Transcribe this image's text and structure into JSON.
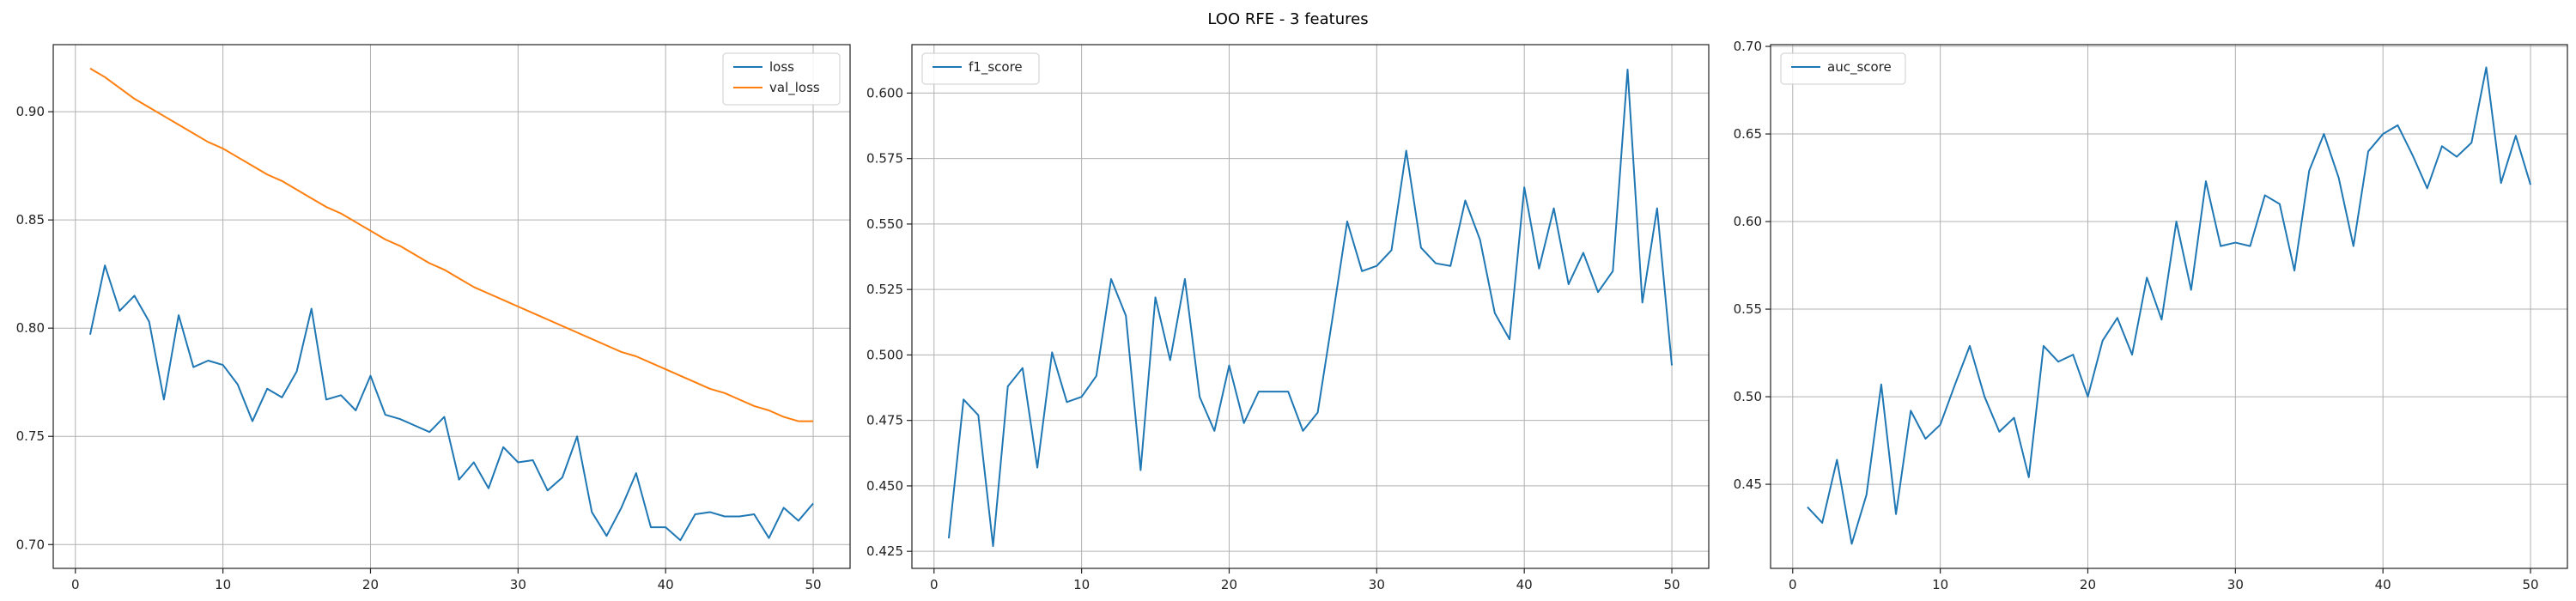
{
  "figure": {
    "title": "LOO RFE - 3 features",
    "background": "#ffffff"
  },
  "chart_data": [
    {
      "type": "line",
      "title": "",
      "xlabel": "",
      "ylabel": "",
      "grid": true,
      "legend_position": "upper-right",
      "xlim": [
        -1.5,
        52.5
      ],
      "ylim": [
        0.689,
        0.931
      ],
      "xticks": [
        0,
        10,
        20,
        30,
        40,
        50
      ],
      "yticks": [
        0.7,
        0.75,
        0.8,
        0.85,
        0.9
      ],
      "ytick_labels": [
        "0.70",
        "0.75",
        "0.80",
        "0.85",
        "0.90"
      ],
      "x": [
        1,
        2,
        3,
        4,
        5,
        6,
        7,
        8,
        9,
        10,
        11,
        12,
        13,
        14,
        15,
        16,
        17,
        18,
        19,
        20,
        21,
        22,
        23,
        24,
        25,
        26,
        27,
        28,
        29,
        30,
        31,
        32,
        33,
        34,
        35,
        36,
        37,
        38,
        39,
        40,
        41,
        42,
        43,
        44,
        45,
        46,
        47,
        48,
        49,
        50
      ],
      "series": [
        {
          "name": "loss",
          "color": "#1f77b4",
          "values": [
            0.797,
            0.829,
            0.808,
            0.815,
            0.803,
            0.767,
            0.806,
            0.782,
            0.785,
            0.783,
            0.774,
            0.757,
            0.772,
            0.768,
            0.78,
            0.809,
            0.767,
            0.769,
            0.762,
            0.778,
            0.76,
            0.758,
            0.755,
            0.752,
            0.759,
            0.73,
            0.738,
            0.726,
            0.745,
            0.738,
            0.739,
            0.725,
            0.731,
            0.75,
            0.715,
            0.704,
            0.717,
            0.733,
            0.708,
            0.708,
            0.702,
            0.714,
            0.715,
            0.713,
            0.713,
            0.714,
            0.703,
            0.717,
            0.711,
            0.719
          ]
        },
        {
          "name": "val_loss",
          "color": "#ff7f0e",
          "values": [
            0.92,
            0.916,
            0.911,
            0.906,
            0.902,
            0.898,
            0.894,
            0.89,
            0.886,
            0.883,
            0.879,
            0.875,
            0.871,
            0.868,
            0.864,
            0.86,
            0.856,
            0.853,
            0.849,
            0.845,
            0.841,
            0.838,
            0.834,
            0.83,
            0.827,
            0.823,
            0.819,
            0.816,
            0.813,
            0.81,
            0.807,
            0.804,
            0.801,
            0.798,
            0.795,
            0.792,
            0.789,
            0.787,
            0.784,
            0.781,
            0.778,
            0.775,
            0.772,
            0.77,
            0.767,
            0.764,
            0.762,
            0.759,
            0.757,
            0.757
          ]
        }
      ]
    },
    {
      "type": "line",
      "title": "",
      "xlabel": "",
      "ylabel": "",
      "grid": true,
      "legend_position": "upper-left",
      "xlim": [
        -1.5,
        52.5
      ],
      "ylim": [
        0.4185,
        0.6185
      ],
      "xticks": [
        0,
        10,
        20,
        30,
        40,
        50
      ],
      "yticks": [
        0.425,
        0.45,
        0.475,
        0.5,
        0.525,
        0.55,
        0.575,
        0.6
      ],
      "ytick_labels": [
        "0.425",
        "0.450",
        "0.475",
        "0.500",
        "0.525",
        "0.550",
        "0.575",
        "0.600"
      ],
      "x": [
        1,
        2,
        3,
        4,
        5,
        6,
        7,
        8,
        9,
        10,
        11,
        12,
        13,
        14,
        15,
        16,
        17,
        18,
        19,
        20,
        21,
        22,
        23,
        24,
        25,
        26,
        27,
        28,
        29,
        30,
        31,
        32,
        33,
        34,
        35,
        36,
        37,
        38,
        39,
        40,
        41,
        42,
        43,
        44,
        45,
        46,
        47,
        48,
        49,
        50
      ],
      "series": [
        {
          "name": "f1_score",
          "color": "#1f77b4",
          "values": [
            0.43,
            0.483,
            0.477,
            0.427,
            0.488,
            0.495,
            0.457,
            0.501,
            0.482,
            0.484,
            0.492,
            0.529,
            0.515,
            0.456,
            0.522,
            0.498,
            0.529,
            0.484,
            0.471,
            0.496,
            0.474,
            0.486,
            0.486,
            0.486,
            0.471,
            0.478,
            0.514,
            0.551,
            0.532,
            0.534,
            0.54,
            0.578,
            0.541,
            0.535,
            0.534,
            0.559,
            0.544,
            0.516,
            0.506,
            0.564,
            0.533,
            0.556,
            0.527,
            0.539,
            0.524,
            0.532,
            0.609,
            0.52,
            0.556,
            0.496
          ]
        }
      ]
    },
    {
      "type": "line",
      "title": "",
      "xlabel": "",
      "ylabel": "",
      "grid": true,
      "legend_position": "upper-left",
      "xlim": [
        -1.5,
        52.5
      ],
      "ylim": [
        0.402,
        0.701
      ],
      "xticks": [
        0,
        10,
        20,
        30,
        40,
        50
      ],
      "yticks": [
        0.45,
        0.5,
        0.55,
        0.6,
        0.65,
        0.7
      ],
      "ytick_labels": [
        "0.45",
        "0.50",
        "0.55",
        "0.60",
        "0.65",
        "0.70"
      ],
      "x": [
        1,
        2,
        3,
        4,
        5,
        6,
        7,
        8,
        9,
        10,
        11,
        12,
        13,
        14,
        15,
        16,
        17,
        18,
        19,
        20,
        21,
        22,
        23,
        24,
        25,
        26,
        27,
        28,
        29,
        30,
        31,
        32,
        33,
        34,
        35,
        36,
        37,
        38,
        39,
        40,
        41,
        42,
        43,
        44,
        45,
        46,
        47,
        48,
        49,
        50
      ],
      "series": [
        {
          "name": "auc_score",
          "color": "#1f77b4",
          "values": [
            0.437,
            0.428,
            0.464,
            0.416,
            0.444,
            0.507,
            0.433,
            0.492,
            0.476,
            0.484,
            0.507,
            0.529,
            0.5,
            0.48,
            0.488,
            0.454,
            0.529,
            0.52,
            0.524,
            0.5,
            0.532,
            0.545,
            0.524,
            0.568,
            0.544,
            0.6,
            0.561,
            0.623,
            0.586,
            0.588,
            0.586,
            0.615,
            0.61,
            0.572,
            0.629,
            0.65,
            0.625,
            0.586,
            0.64,
            0.65,
            0.655,
            0.638,
            0.619,
            0.643,
            0.637,
            0.645,
            0.688,
            0.622,
            0.649,
            0.621
          ]
        }
      ]
    }
  ]
}
